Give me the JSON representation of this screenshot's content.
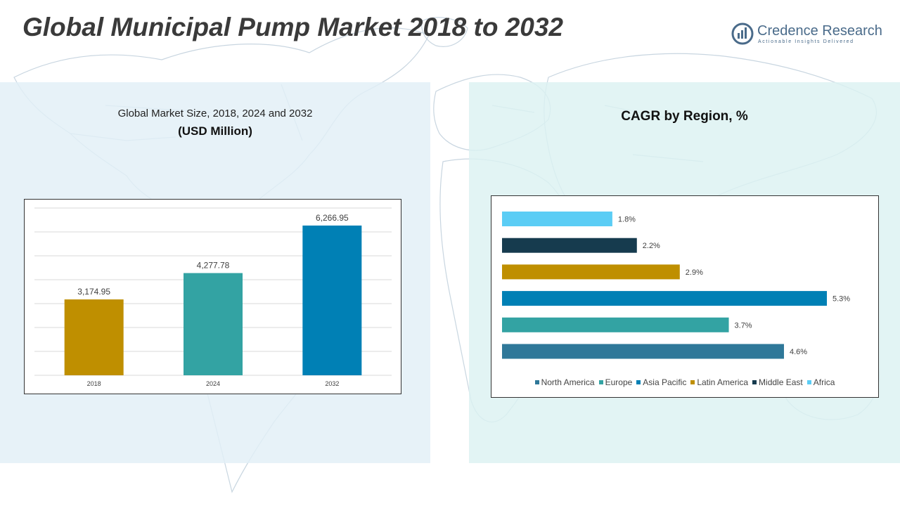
{
  "title": "Global Municipal Pump Market 2018 to 2032",
  "brand": {
    "name": "Credence Research",
    "tagline": "Actionable Insights Delivered",
    "color": "#4a6b8a"
  },
  "chart_data": [
    {
      "type": "bar",
      "title": "Global Market Size, 2018, 2024 and 2032",
      "subtitle": "(USD Million)",
      "categories": [
        "2018",
        "2024",
        "2032"
      ],
      "values": [
        3174.95,
        4277.78,
        6266.95
      ],
      "data_labels": [
        "3,174.95",
        "4,277.78",
        "6,266.95"
      ],
      "colors": [
        "#bf8f00",
        "#33a3a3",
        "#0080b5"
      ],
      "ylim": [
        0,
        7000
      ],
      "grid": true,
      "legend": "none"
    },
    {
      "type": "bar",
      "orientation": "horizontal",
      "title": "CAGR by Region, %",
      "categories": [
        "Africa",
        "Middle East",
        "Latin America",
        "Asia Pacific",
        "Europe",
        "North America"
      ],
      "values": [
        1.8,
        2.2,
        2.9,
        5.3,
        3.7,
        4.6
      ],
      "data_labels": [
        "1.8%",
        "2.2%",
        "2.9%",
        "5.3%",
        "3.7%",
        "4.6%"
      ],
      "colors": [
        "#5bcdf5",
        "#163b4e",
        "#bf8f00",
        "#0080b5",
        "#33a3a3",
        "#2f7899"
      ],
      "xlim": [
        0,
        5.3
      ],
      "grid": false,
      "legend": "bottom",
      "legend_items": [
        {
          "label": "North America",
          "color": "#2f7899"
        },
        {
          "label": "Europe",
          "color": "#33a3a3"
        },
        {
          "label": "Asia Pacific",
          "color": "#0080b5"
        },
        {
          "label": "Latin America",
          "color": "#bf8f00"
        },
        {
          "label": "Middle East",
          "color": "#163b4e"
        },
        {
          "label": "Africa",
          "color": "#5bcdf5"
        }
      ]
    }
  ]
}
